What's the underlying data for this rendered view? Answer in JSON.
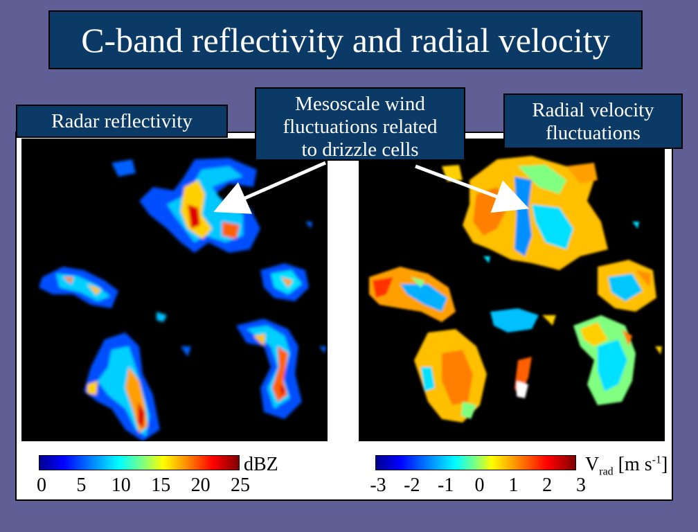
{
  "slide": {
    "title": "C-band reflectivity and radial velocity",
    "labels": {
      "left": "Radar reflectivity",
      "middle": [
        "Mesoscale wind",
        "fluctuations related",
        "to drizzle cells"
      ],
      "right": [
        "Radial velocity",
        "fluctuations"
      ]
    }
  },
  "colorbars": {
    "reflectivity": {
      "unit": "dBZ",
      "ticks": [
        "0",
        "5",
        "10",
        "15",
        "20",
        "25"
      ]
    },
    "velocity": {
      "unit_main": "V",
      "unit_sub": "rad",
      "unit_rest": " [m s",
      "unit_sup": "-1",
      "unit_end": "]",
      "ticks": [
        "-3",
        "-2",
        "-1",
        "0",
        "1",
        "2",
        "3"
      ]
    }
  },
  "colors": {
    "background": "#5f5f96",
    "label_fill": "#0c3a66"
  }
}
